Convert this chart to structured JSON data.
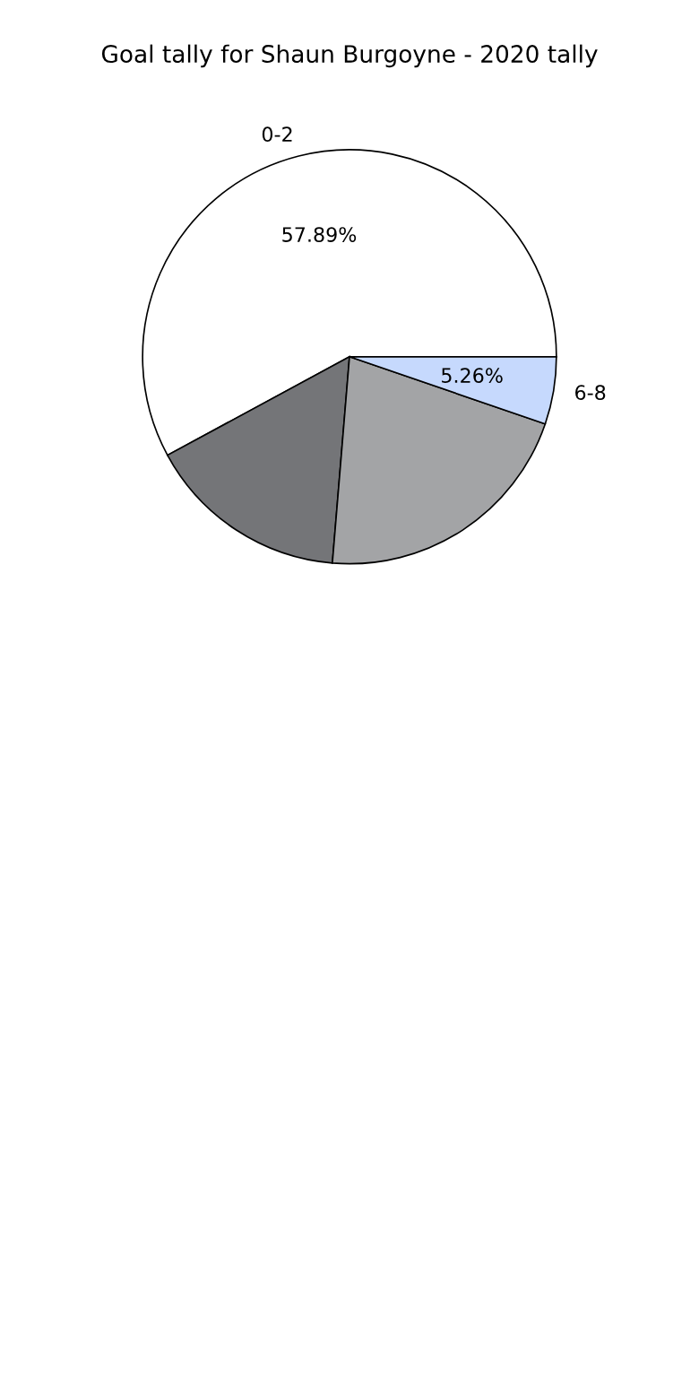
{
  "chart_data": {
    "type": "pie",
    "title": "Goal tally for Shaun Burgoyne - 2020 tally",
    "categories": [
      "0-2",
      null,
      null,
      "6-8"
    ],
    "values": [
      57.89,
      15.79,
      21.06,
      5.26
    ],
    "colors": [
      "#ffffff",
      "#747578",
      "#a3a4a6",
      "#c6d9fd"
    ],
    "value_labels": [
      "57.89%",
      null,
      null,
      "5.26%"
    ],
    "legend": false
  }
}
